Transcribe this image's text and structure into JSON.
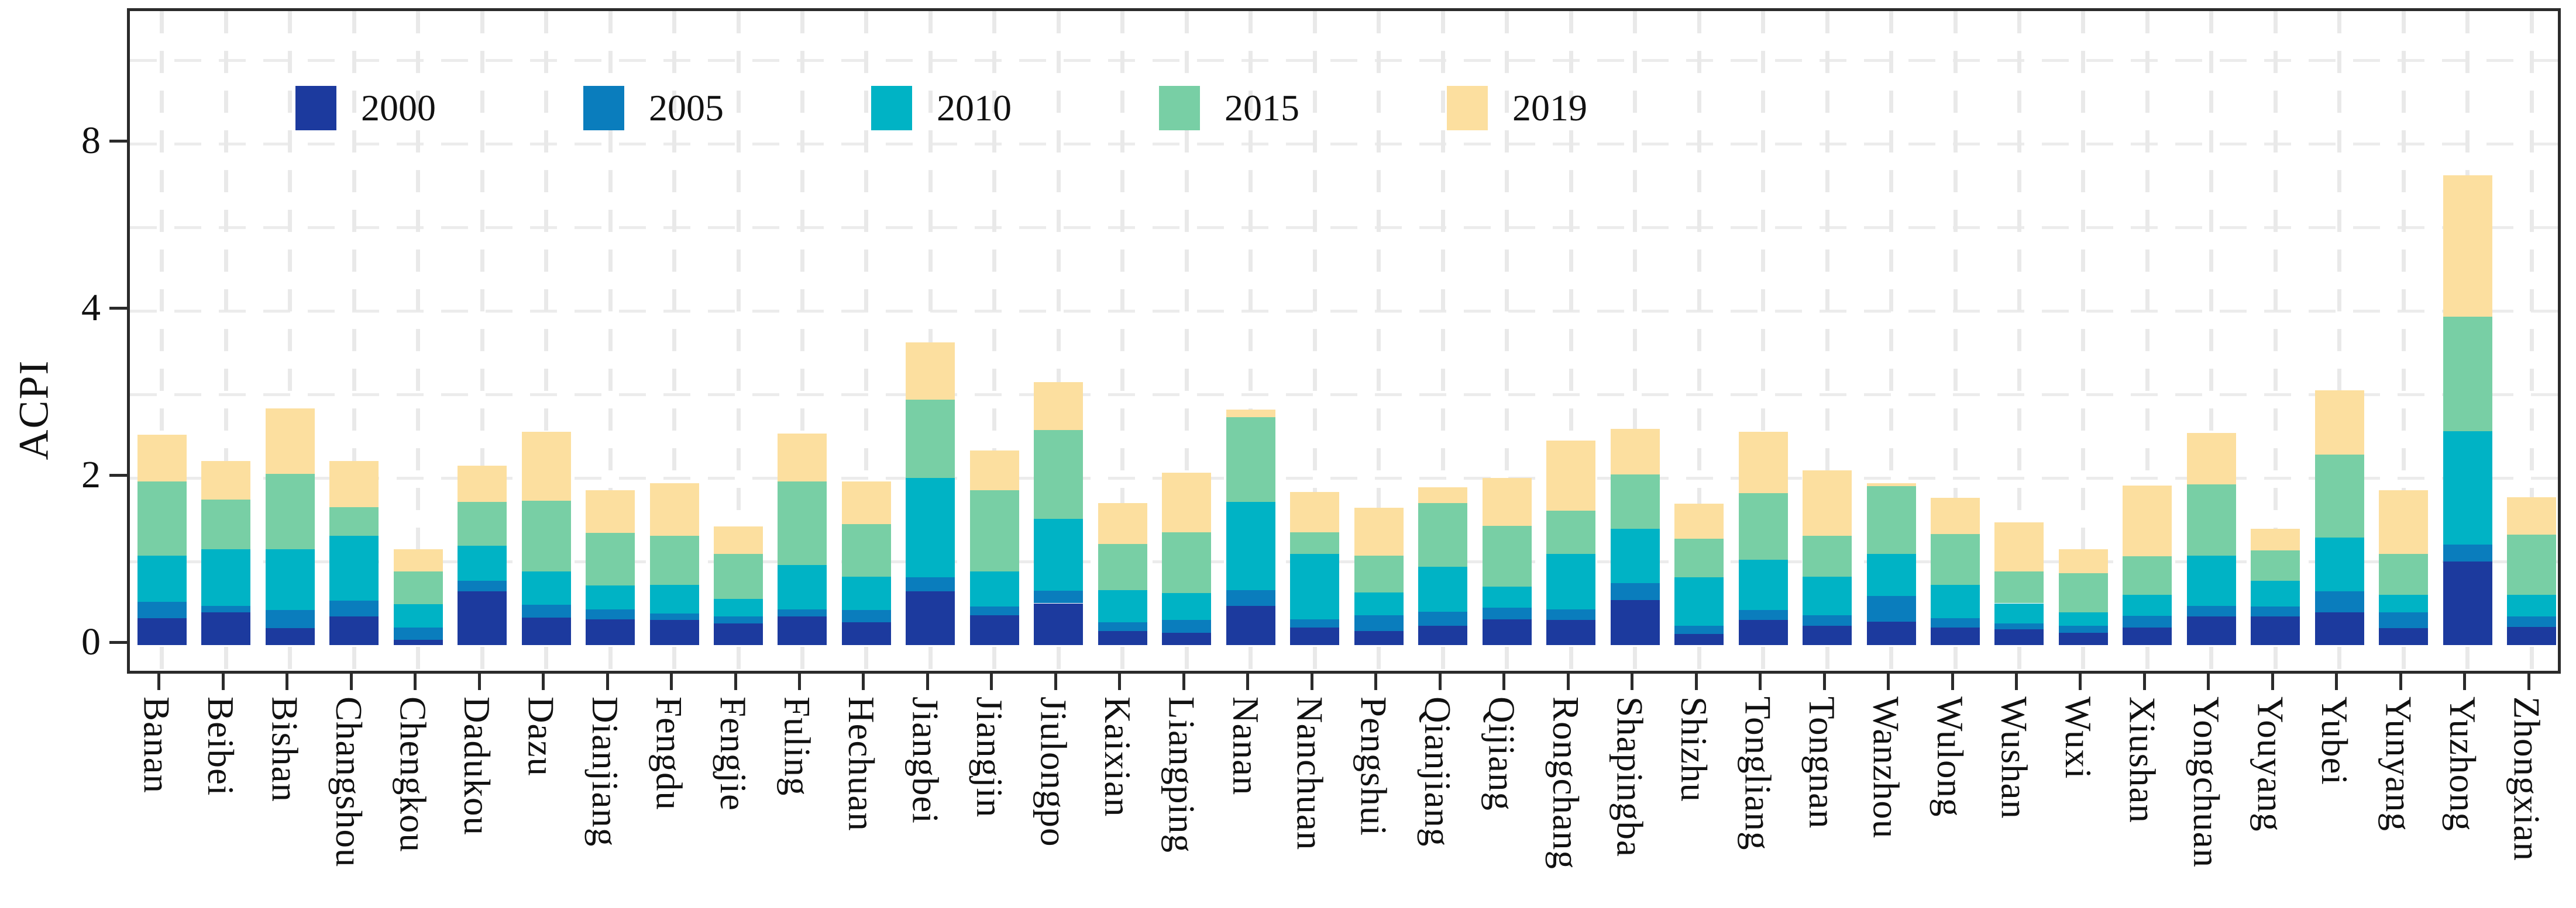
{
  "figure": {
    "background": "#ffffff",
    "axis_border_color": "#2b2b2b",
    "gridline_color": "#ececec"
  },
  "axes": {
    "y_label": "ACPI",
    "y_ticks": [
      {
        "label": "0",
        "value": 0
      },
      {
        "label": "2",
        "value": 2
      },
      {
        "label": "4",
        "value": 4
      },
      {
        "label": "8",
        "value": 8
      }
    ]
  },
  "legend": {
    "position": "top-inside",
    "entries": [
      {
        "label": "2000",
        "color": "#1c3a9e"
      },
      {
        "label": "2005",
        "color": "#0a7dbd"
      },
      {
        "label": "2010",
        "color": "#00b3c5"
      },
      {
        "label": "2015",
        "color": "#78cfa5"
      },
      {
        "label": "2019",
        "color": "#fcdf9f"
      }
    ]
  },
  "chart_data": {
    "type": "bar",
    "stacked": true,
    "title": "",
    "xlabel": "",
    "ylabel": "ACPI",
    "grid": true,
    "legend_position": "top inside, horizontal",
    "y_axis_note": "ticks 0,2,4,8 are evenly spaced; scale is compressed above 4 (log2-like), minor gridlines at 1,3 and midway between 4 and 8",
    "ylim": [
      0,
      9.6
    ],
    "categories": [
      "Banan",
      "Beibei",
      "Bishan",
      "Changshou",
      "Chengkou",
      "Dadukou",
      "Dazu",
      "Dianjiang",
      "Fengdu",
      "Fengjie",
      "Fuling",
      "Hechuan",
      "Jiangbei",
      "Jiangjin",
      "Jiulongpo",
      "Kaixian",
      "Liangping",
      "Nanan",
      "Nanchuan",
      "Pengshui",
      "Qianjiang",
      "Qijiang",
      "Rongchang",
      "Shapingba",
      "Shizhu",
      "Tongliang",
      "Tongnan",
      "Wanzhou",
      "Wulong",
      "Wushan",
      "Wuxi",
      "Xiushan",
      "Yongchuan",
      "Youyang",
      "Yubei",
      "Yunyang",
      "Yuzhong",
      "Zhongxian"
    ],
    "series": [
      {
        "name": "2000",
        "color": "#1c3a9e",
        "values": [
          0.32,
          0.39,
          0.2,
          0.34,
          0.06,
          0.64,
          0.33,
          0.31,
          0.3,
          0.26,
          0.34,
          0.27,
          0.64,
          0.36,
          0.5,
          0.17,
          0.15,
          0.47,
          0.21,
          0.17,
          0.23,
          0.31,
          0.3,
          0.54,
          0.13,
          0.3,
          0.23,
          0.28,
          0.21,
          0.19,
          0.15,
          0.21,
          0.34,
          0.34,
          0.39,
          0.2,
          1.0,
          0.22
        ]
      },
      {
        "name": "2005",
        "color": "#0a7dbd",
        "values": [
          0.2,
          0.08,
          0.22,
          0.19,
          0.15,
          0.13,
          0.15,
          0.12,
          0.08,
          0.08,
          0.09,
          0.15,
          0.17,
          0.1,
          0.15,
          0.1,
          0.15,
          0.19,
          0.1,
          0.19,
          0.17,
          0.14,
          0.13,
          0.2,
          0.1,
          0.12,
          0.13,
          0.31,
          0.11,
          0.07,
          0.08,
          0.14,
          0.13,
          0.12,
          0.25,
          0.19,
          0.2,
          0.12
        ]
      },
      {
        "name": "2010",
        "color": "#00b3c5",
        "values": [
          0.55,
          0.68,
          0.73,
          0.78,
          0.28,
          0.42,
          0.4,
          0.28,
          0.34,
          0.21,
          0.53,
          0.4,
          1.19,
          0.42,
          0.86,
          0.39,
          0.32,
          1.05,
          0.78,
          0.27,
          0.54,
          0.25,
          0.66,
          0.65,
          0.58,
          0.6,
          0.46,
          0.5,
          0.4,
          0.24,
          0.16,
          0.25,
          0.6,
          0.31,
          0.65,
          0.21,
          1.36,
          0.26
        ]
      },
      {
        "name": "2015",
        "color": "#78cfa5",
        "values": [
          0.89,
          0.59,
          0.9,
          0.34,
          0.39,
          0.52,
          0.85,
          0.63,
          0.59,
          0.54,
          1.0,
          0.63,
          0.94,
          0.97,
          1.06,
          0.55,
          0.73,
          1.02,
          0.26,
          0.44,
          0.76,
          0.73,
          0.52,
          0.65,
          0.46,
          0.8,
          0.49,
          0.81,
          0.61,
          0.38,
          0.47,
          0.46,
          0.85,
          0.36,
          0.99,
          0.49,
          1.37,
          0.72
        ]
      },
      {
        "name": "2019",
        "color": "#fcdf9f",
        "values": [
          0.56,
          0.46,
          0.78,
          0.55,
          0.27,
          0.44,
          0.82,
          0.51,
          0.63,
          0.33,
          0.57,
          0.51,
          0.68,
          0.48,
          0.58,
          0.49,
          0.71,
          0.09,
          0.48,
          0.57,
          0.19,
          0.57,
          0.84,
          0.55,
          0.42,
          0.73,
          0.78,
          0.04,
          0.43,
          0.59,
          0.29,
          0.85,
          0.62,
          0.26,
          0.77,
          0.76,
          3.32,
          0.45
        ]
      }
    ]
  }
}
